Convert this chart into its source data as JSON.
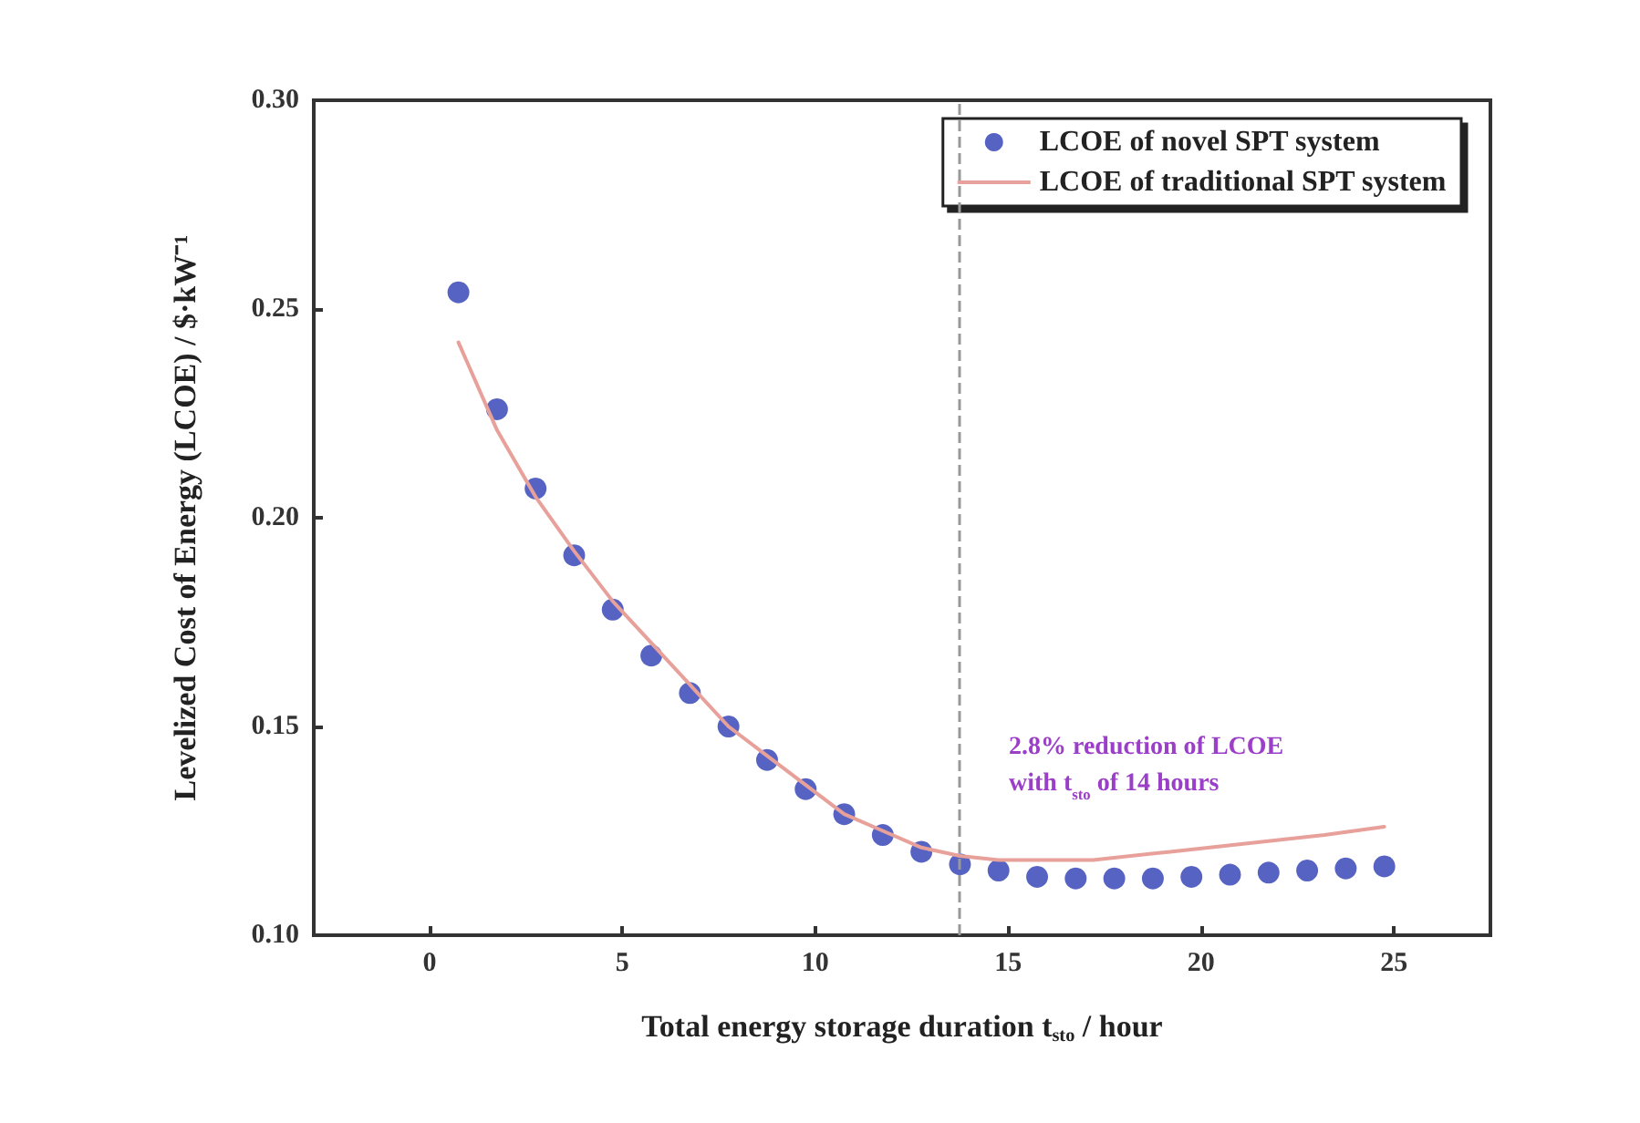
{
  "chart_data": {
    "type": "scatter",
    "xlabel": "Total energy storage duration t$_{sto}$ / hour",
    "ylabel": "Levelized Cost of Energy (LCOE) / $·kW⁻¹",
    "xlim": [
      -3,
      27.5
    ],
    "xticks": [
      0,
      5,
      10,
      15,
      20,
      25
    ],
    "ylim": [
      0.1,
      0.3
    ],
    "yticks": [
      {
        "value": 0.1,
        "label": "0.10"
      },
      {
        "value": 0.15,
        "label": "0.15"
      },
      {
        "value": 0.2,
        "label": "0.20"
      },
      {
        "value": 0.25,
        "label": "0.25"
      },
      {
        "value": 0.3,
        "label": "0.30"
      }
    ],
    "series": [
      {
        "name": "LCOE of novel SPT system",
        "marker": "circle",
        "color": "#2c3cb4",
        "x": [
          0.75,
          1.75,
          2.75,
          3.75,
          4.75,
          5.75,
          6.75,
          7.75,
          8.75,
          9.75,
          10.75,
          11.75,
          12.75,
          13.75,
          14.75,
          15.75,
          16.75,
          17.75,
          18.75,
          19.75,
          20.75,
          21.75,
          22.75,
          23.75,
          24.75
        ],
        "values": [
          0.254,
          0.226,
          0.207,
          0.191,
          0.178,
          0.167,
          0.158,
          0.15,
          0.142,
          0.135,
          0.129,
          0.124,
          0.12,
          0.117,
          0.1155,
          0.114,
          0.1136,
          0.1136,
          0.1136,
          0.114,
          0.1145,
          0.115,
          0.1155,
          0.116,
          0.1165
        ]
      },
      {
        "name": "LCOE of traditional SPT system",
        "type": "line",
        "marker": "none",
        "color": "#e8a09a",
        "line_style": "solid",
        "x": [
          0.75,
          1.75,
          2.75,
          3.75,
          4.75,
          5.75,
          6.75,
          7.75,
          8.75,
          9.75,
          10.75,
          11.75,
          12.75,
          13.75,
          14.75,
          15.75,
          17.2,
          19.2,
          21.2,
          23.2,
          24.75
        ],
        "values": [
          0.242,
          0.221,
          0.205,
          0.192,
          0.18,
          0.17,
          0.16,
          0.15,
          0.143,
          0.136,
          0.129,
          0.125,
          0.121,
          0.119,
          0.118,
          0.118,
          0.118,
          0.12,
          0.122,
          0.124,
          0.126
        ]
      }
    ],
    "legend": "top right",
    "ref_lines": [
      {
        "axis": "x",
        "value": 13.75,
        "color": "#999999",
        "line_style": "dashed"
      }
    ],
    "annotations": [
      "2.8% reduction of LCOE\nwith t$_{sto}$ of 14 hours"
    ]
  }
}
